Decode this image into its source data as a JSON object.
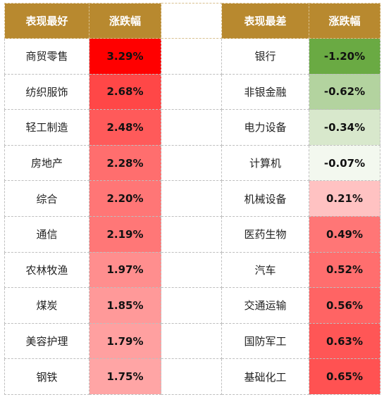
{
  "header": {
    "best_label": "表现最好",
    "best_change_label": "涨跌幅",
    "worst_label": "表现最差",
    "worst_change_label": "涨跌幅"
  },
  "colors": {
    "header_bg": "#b8892f",
    "header_text": "#ffffff"
  },
  "best": [
    {
      "name": "商贸零售",
      "change": "3.29%",
      "color": "#ff0000"
    },
    {
      "name": "纺织服饰",
      "change": "2.68%",
      "color": "#ff4747"
    },
    {
      "name": "轻工制造",
      "change": "2.48%",
      "color": "#ff5a5a"
    },
    {
      "name": "房地产",
      "change": "2.28%",
      "color": "#ff6e6e"
    },
    {
      "name": "综合",
      "change": "2.20%",
      "color": "#ff7676"
    },
    {
      "name": "通信",
      "change": "2.19%",
      "color": "#ff7777"
    },
    {
      "name": "农林牧渔",
      "change": "1.97%",
      "color": "#ff8e8e"
    },
    {
      "name": "煤炭",
      "change": "1.85%",
      "color": "#ff9999"
    },
    {
      "name": "美容护理",
      "change": "1.79%",
      "color": "#ffa0a0"
    },
    {
      "name": "钢铁",
      "change": "1.75%",
      "color": "#ffa5a5"
    }
  ],
  "worst": [
    {
      "name": "银行",
      "change": "-1.20%",
      "color": "#6aaa43"
    },
    {
      "name": "非银金融",
      "change": "-0.62%",
      "color": "#b3d39f"
    },
    {
      "name": "电力设备",
      "change": "-0.34%",
      "color": "#d8e8cc"
    },
    {
      "name": "计算机",
      "change": "-0.07%",
      "color": "#f3f8ef"
    },
    {
      "name": "机械设备",
      "change": "0.21%",
      "color": "#ffc2c2"
    },
    {
      "name": "医药生物",
      "change": "0.49%",
      "color": "#ff7676"
    },
    {
      "name": "汽车",
      "change": "0.52%",
      "color": "#ff6e6e"
    },
    {
      "name": "交通运输",
      "change": "0.56%",
      "color": "#ff6464"
    },
    {
      "name": "国防军工",
      "change": "0.63%",
      "color": "#ff5656"
    },
    {
      "name": "基础化工",
      "change": "0.65%",
      "color": "#ff5252"
    }
  ]
}
